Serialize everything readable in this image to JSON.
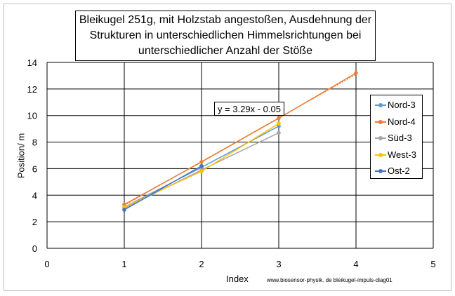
{
  "chart_data": {
    "type": "line",
    "title_lines": [
      "Bleikugel  251g, mit Holzstab angestoßen, Ausdehnung der",
      "Strukturen in unterschiedlichen Himmelsrichtungen bei",
      "unterschiedlicher Anzahl der Stöße"
    ],
    "xlabel": "Index",
    "ylabel": "Position/ m",
    "xlim": [
      0,
      5
    ],
    "ylim": [
      0,
      14
    ],
    "x_ticks": [
      "0",
      "1",
      "2",
      "3",
      "4",
      "5"
    ],
    "y_ticks": [
      "0",
      "2",
      "4",
      "6",
      "8",
      "10",
      "12",
      "14"
    ],
    "grid": true,
    "legend_position": "right",
    "trendline_label": "y = 3.29x - 0.05",
    "trendline": {
      "slope": 3.29,
      "intercept": -0.05,
      "x_range": [
        1,
        4
      ],
      "color": "#ED7D31"
    },
    "series": [
      {
        "name": "Nord-3",
        "color": "#5B9BD5",
        "x": [
          1,
          2,
          3
        ],
        "y": [
          3.1,
          6.1,
          9.2
        ]
      },
      {
        "name": "Nord-4",
        "color": "#ED7D31",
        "x": [
          1,
          2,
          3,
          4
        ],
        "y": [
          3.3,
          6.5,
          9.8,
          13.2
        ]
      },
      {
        "name": "Süd-3",
        "color": "#A5A5A5",
        "x": [
          1,
          2,
          3
        ],
        "y": [
          3.0,
          5.9,
          8.7
        ]
      },
      {
        "name": "West-3",
        "color": "#FFC000",
        "x": [
          1,
          2,
          3
        ],
        "y": [
          3.1,
          5.8,
          9.4
        ]
      },
      {
        "name": "Ost-2",
        "color": "#4472C4",
        "x": [
          1,
          2
        ],
        "y": [
          2.9,
          6.2
        ]
      }
    ]
  },
  "credit": "www.biosensor-physik. de bleikugel-impuls-diag01"
}
